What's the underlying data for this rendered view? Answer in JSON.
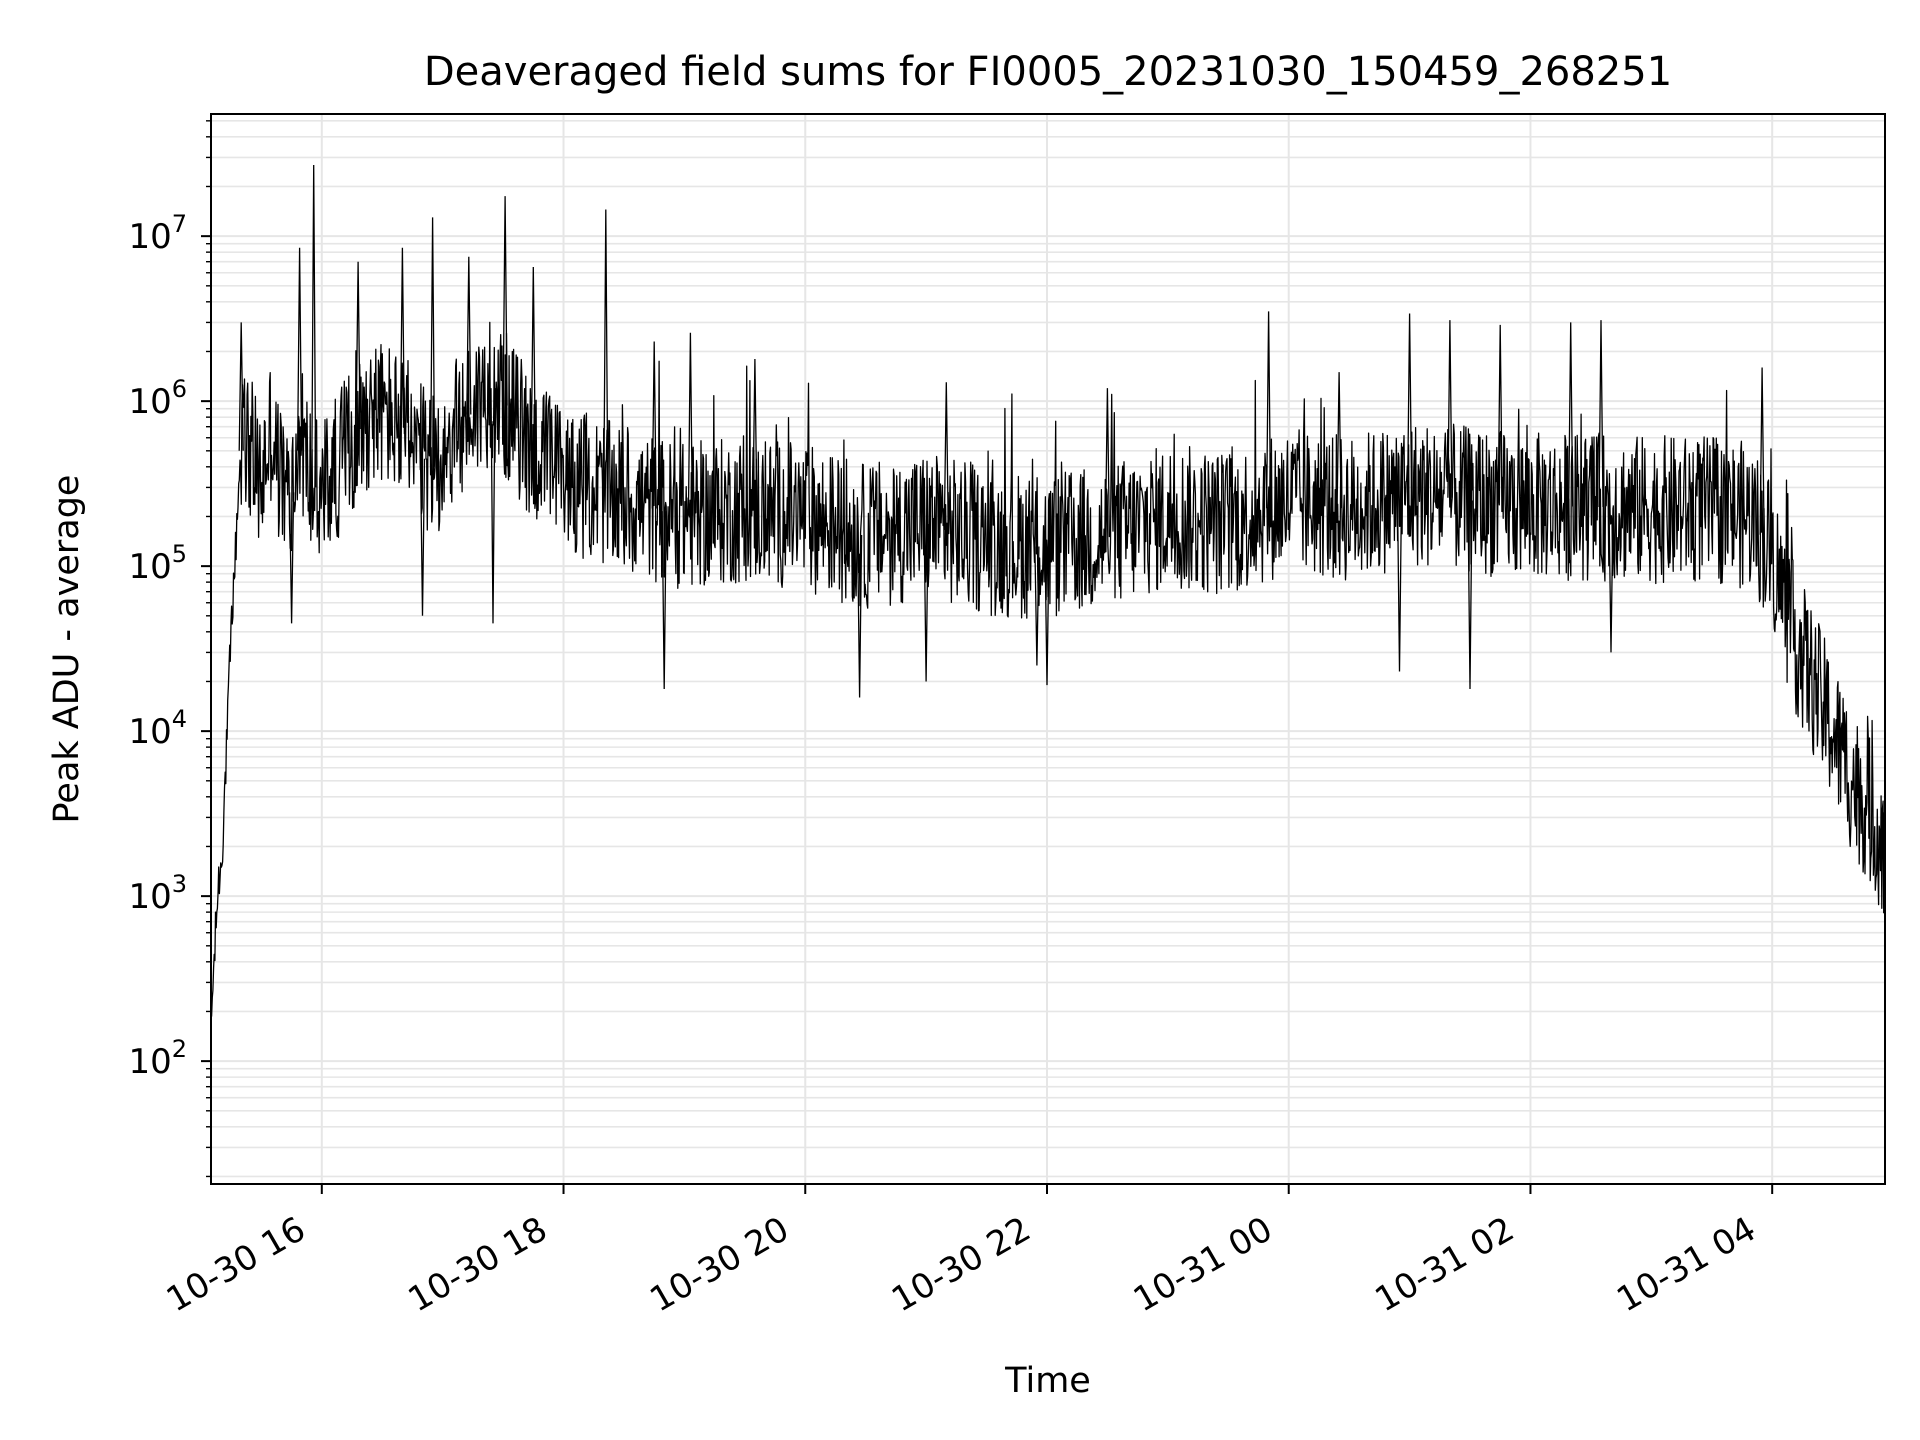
{
  "chart_data": {
    "type": "line",
    "title": "Deaveraged field sums for FI0005_20231030_150459_268251",
    "xlabel": "Time",
    "ylabel": "Peak ADU - average",
    "x_scale": "time",
    "y_scale": "log",
    "xlim": [
      "2023-10-30 15:05",
      "2023-10-31 04:56"
    ],
    "ylim": [
      18,
      55000000
    ],
    "grid": {
      "major": true,
      "minor_y": true
    },
    "line_color": "#000000",
    "grid_color": "#e6e6e6",
    "x_ticks": [
      {
        "value": "2023-10-30 16:00",
        "label": "10-30 16"
      },
      {
        "value": "2023-10-30 18:00",
        "label": "10-30 18"
      },
      {
        "value": "2023-10-30 20:00",
        "label": "10-30 20"
      },
      {
        "value": "2023-10-30 22:00",
        "label": "10-30 22"
      },
      {
        "value": "2023-10-31 00:00",
        "label": "10-31 00"
      },
      {
        "value": "2023-10-31 02:00",
        "label": "10-31 02"
      },
      {
        "value": "2023-10-31 04:00",
        "label": "10-31 04"
      }
    ],
    "y_ticks": [
      {
        "value": 100,
        "base": "10",
        "exp": "2"
      },
      {
        "value": 1000,
        "base": "10",
        "exp": "3"
      },
      {
        "value": 10000,
        "base": "10",
        "exp": "4"
      },
      {
        "value": 100000,
        "base": "10",
        "exp": "5"
      },
      {
        "value": 1000000,
        "base": "10",
        "exp": "6"
      },
      {
        "value": 10000000,
        "base": "10",
        "exp": "7"
      }
    ],
    "series": [
      {
        "x": [
          "2023-10-30 15:05",
          "2023-10-30 15:06",
          "2023-10-30 15:07",
          "2023-10-30 15:08",
          "2023-10-30 15:09",
          "2023-10-30 15:10",
          "2023-10-30 15:11",
          "2023-10-30 15:12",
          "2023-10-30 15:13",
          "2023-10-30 15:14",
          "2023-10-30 15:15",
          "2023-10-30 15:16",
          "2023-10-30 15:17",
          "2023-10-30 15:18",
          "2023-10-30 15:19",
          "2023-10-30 15:20",
          "2023-10-30 15:22",
          "2023-10-30 15:25",
          "2023-10-30 15:28",
          "2023-10-30 15:30",
          "2023-10-30 15:32",
          "2023-10-30 15:35",
          "2023-10-30 15:38",
          "2023-10-30 15:41",
          "2023-10-30 15:44",
          "2023-10-30 15:47",
          "2023-10-30 15:50",
          "2023-10-30 15:53",
          "2023-10-30 15:56",
          "2023-10-30 15:59",
          "2023-10-30 16:05",
          "2023-10-30 16:15",
          "2023-10-30 16:25",
          "2023-10-30 16:35",
          "2023-10-30 16:45",
          "2023-10-30 16:55",
          "2023-10-30 17:05",
          "2023-10-30 17:15",
          "2023-10-30 17:25",
          "2023-10-30 17:35",
          "2023-10-30 17:45",
          "2023-10-30 18:00",
          "2023-10-30 18:30",
          "2023-10-30 19:00",
          "2023-10-30 19:30",
          "2023-10-30 20:00",
          "2023-10-30 20:30",
          "2023-10-30 21:00",
          "2023-10-30 21:30",
          "2023-10-30 22:00",
          "2023-10-30 22:30",
          "2023-10-30 23:00",
          "2023-10-30 23:30",
          "2023-10-31 00:00",
          "2023-10-31 00:30",
          "2023-10-31 01:00",
          "2023-10-31 01:30",
          "2023-10-31 02:00",
          "2023-10-31 02:30",
          "2023-10-31 03:00",
          "2023-10-31 03:30",
          "2023-10-31 03:50",
          "2023-10-31 04:00",
          "2023-10-31 04:10",
          "2023-10-31 04:20",
          "2023-10-31 04:30",
          "2023-10-31 04:40",
          "2023-10-31 04:50",
          "2023-10-31 04:56"
        ],
        "y": [
          150,
          300,
          500,
          900,
          1300,
          1500,
          2500,
          5000,
          9000,
          20000,
          40000,
          70000,
          110000,
          200000,
          350000,
          500000,
          600000,
          500000,
          350000,
          300000,
          450000,
          700000,
          400000,
          300000,
          250000,
          350000,
          600000,
          400000,
          300000,
          250000,
          350000,
          600000,
          900000,
          800000,
          500000,
          400000,
          600000,
          900000,
          1200000,
          800000,
          500000,
          350000,
          250000,
          200000,
          220000,
          200000,
          150000,
          180000,
          140000,
          130000,
          150000,
          200000,
          180000,
          250000,
          220000,
          280000,
          250000,
          230000,
          230000,
          220000,
          220000,
          200000,
          120000,
          40000,
          20000,
          10000,
          5000,
          3000,
          2000
        ]
      }
    ],
    "spikes": [
      {
        "x": "2023-10-30 15:20",
        "y": 3000000
      },
      {
        "x": "2023-10-30 15:56",
        "y": 27000000
      },
      {
        "x": "2023-10-30 15:49",
        "y": 8500000
      },
      {
        "x": "2023-10-30 16:18",
        "y": 7000000
      },
      {
        "x": "2023-10-30 16:40",
        "y": 8500000
      },
      {
        "x": "2023-10-30 16:55",
        "y": 13000000
      },
      {
        "x": "2023-10-30 17:13",
        "y": 7500000
      },
      {
        "x": "2023-10-30 17:31",
        "y": 17500000
      },
      {
        "x": "2023-10-30 17:45",
        "y": 6500000
      },
      {
        "x": "2023-10-30 18:21",
        "y": 14500000
      },
      {
        "x": "2023-10-30 18:45",
        "y": 2300000
      },
      {
        "x": "2023-10-30 19:03",
        "y": 2600000
      },
      {
        "x": "2023-10-30 19:35",
        "y": 1800000
      },
      {
        "x": "2023-10-30 21:10",
        "y": 1300000
      },
      {
        "x": "2023-10-30 22:30",
        "y": 1200000
      },
      {
        "x": "2023-10-30 23:50",
        "y": 3500000
      },
      {
        "x": "2023-10-31 00:25",
        "y": 1500000
      },
      {
        "x": "2023-10-31 01:00",
        "y": 3400000
      },
      {
        "x": "2023-10-31 01:20",
        "y": 3100000
      },
      {
        "x": "2023-10-31 01:45",
        "y": 2900000
      },
      {
        "x": "2023-10-31 02:20",
        "y": 3000000
      },
      {
        "x": "2023-10-31 02:35",
        "y": 3100000
      },
      {
        "x": "2023-10-31 03:55",
        "y": 1600000
      }
    ],
    "dips": [
      {
        "x": "2023-10-30 15:45",
        "y": 45000
      },
      {
        "x": "2023-10-30 16:50",
        "y": 50000
      },
      {
        "x": "2023-10-30 17:25",
        "y": 45000
      },
      {
        "x": "2023-10-30 18:50",
        "y": 18000
      },
      {
        "x": "2023-10-30 20:27",
        "y": 16000
      },
      {
        "x": "2023-10-30 21:00",
        "y": 20000
      },
      {
        "x": "2023-10-30 21:55",
        "y": 25000
      },
      {
        "x": "2023-10-30 22:00",
        "y": 19000
      },
      {
        "x": "2023-10-31 00:55",
        "y": 23000
      },
      {
        "x": "2023-10-31 01:30",
        "y": 18000
      },
      {
        "x": "2023-10-31 02:40",
        "y": 30000
      }
    ]
  }
}
